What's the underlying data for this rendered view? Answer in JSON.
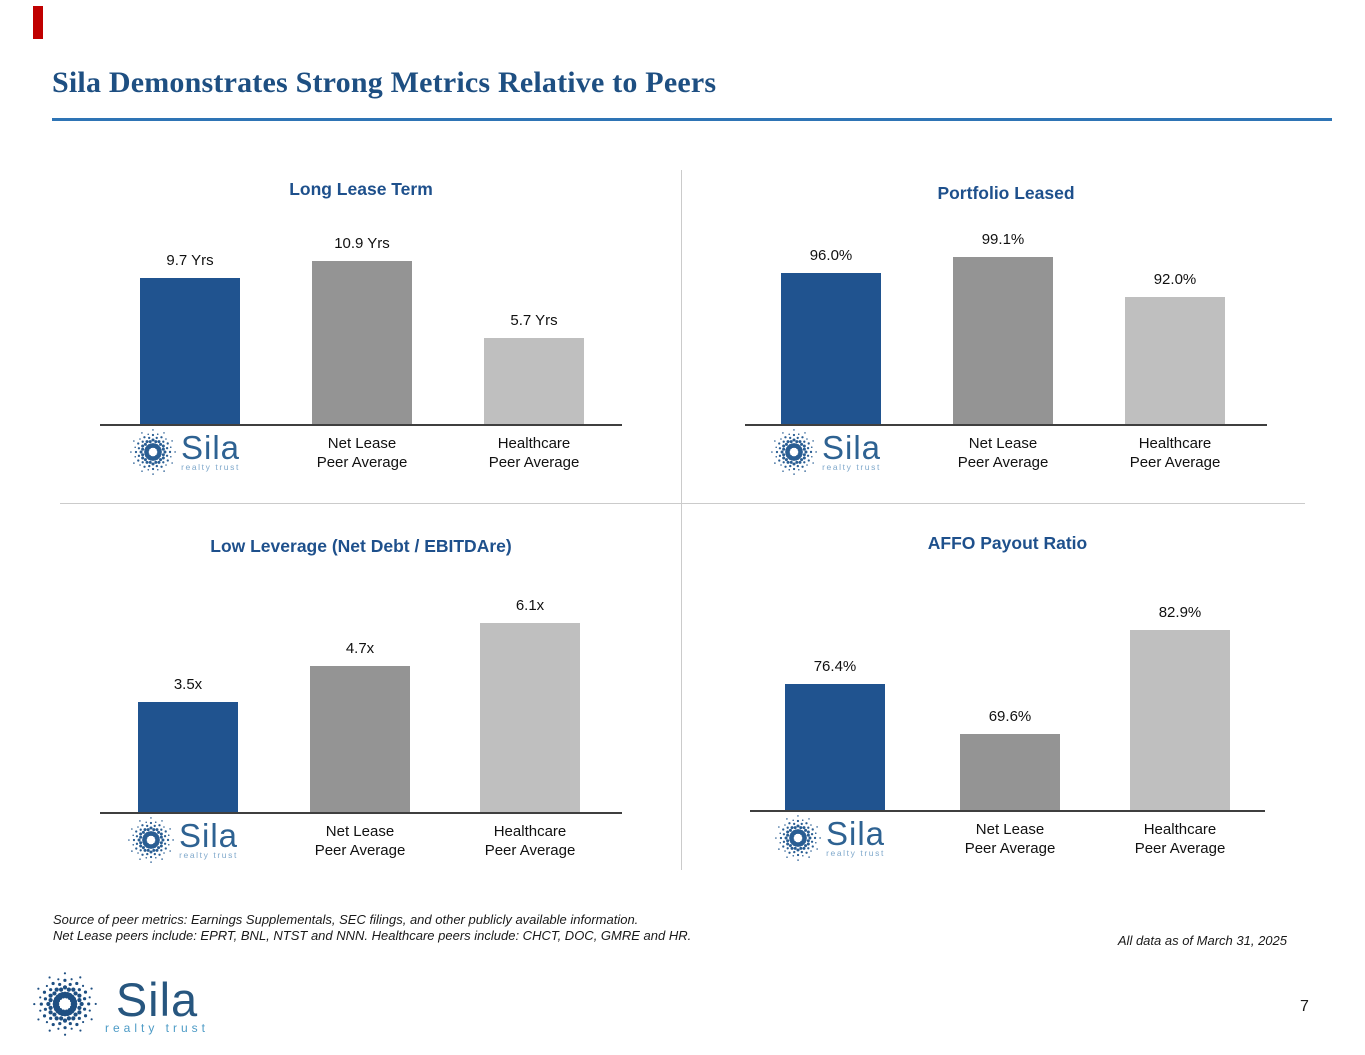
{
  "slide": {
    "title": "Sila Demonstrates Strong Metrics Relative to Peers",
    "page_number": "7"
  },
  "footer": {
    "source_line1": "Source of peer metrics: Earnings Supplementals, SEC filings, and other publicly available information.",
    "source_line2": "Net Lease peers include: EPRT, BNL, NTST and NNN. Healthcare peers include: CHCT, DOC, GMRE and HR.",
    "as_of": "All data as of March 31, 2025"
  },
  "logo": {
    "name": "Sila",
    "tagline": "realty trust"
  },
  "colors": {
    "sila_blue": "#20538F",
    "net_lease_gray": "#949494",
    "healthcare_gray": "#BFBFBF",
    "chart_title_blue": "#1E508C",
    "rule_blue": "#2E74B5",
    "accent_red": "#C00000",
    "axis_dark": "#3F3F3F"
  },
  "chart_data": [
    {
      "type": "bar",
      "title": "Long Lease Term",
      "categories": [
        "Sila",
        "Net Lease Peer Average",
        "Healthcare Peer Average"
      ],
      "values": [
        9.7,
        10.9,
        5.7
      ],
      "value_labels": [
        "9.7 Yrs",
        "10.9 Yrs",
        "5.7 Yrs"
      ],
      "unit": "Yrs",
      "bar_colors": [
        "#20538F",
        "#949494",
        "#BFBFBF"
      ],
      "x_label_lines": [
        [
          "Net Lease",
          "Peer Average"
        ],
        [
          "Healthcare",
          "Peer Average"
        ]
      ],
      "legend": "none",
      "grid": "off"
    },
    {
      "type": "bar",
      "title": "Portfolio Leased",
      "categories": [
        "Sila",
        "Net Lease Peer Average",
        "Healthcare Peer Average"
      ],
      "values": [
        96.0,
        99.1,
        92.0
      ],
      "value_labels": [
        "96.0%",
        "99.1%",
        "92.0%"
      ],
      "unit": "%",
      "bar_colors": [
        "#20538F",
        "#949494",
        "#BFBFBF"
      ],
      "x_label_lines": [
        [
          "Net Lease",
          "Peer Average"
        ],
        [
          "Healthcare",
          "Peer Average"
        ]
      ],
      "legend": "none",
      "grid": "off"
    },
    {
      "type": "bar",
      "title": "Low Leverage (Net Debt / EBITDAre)",
      "categories": [
        "Sila",
        "Net Lease Peer Average",
        "Healthcare Peer Average"
      ],
      "values": [
        3.5,
        4.7,
        6.1
      ],
      "value_labels": [
        "3.5x",
        "4.7x",
        "6.1x"
      ],
      "unit": "x",
      "bar_colors": [
        "#20538F",
        "#949494",
        "#BFBFBF"
      ],
      "x_label_lines": [
        [
          "Net Lease",
          "Peer Average"
        ],
        [
          "Healthcare",
          "Peer Average"
        ]
      ],
      "legend": "none",
      "grid": "off"
    },
    {
      "type": "bar",
      "title": "AFFO Payout Ratio",
      "categories": [
        "Sila",
        "Net Lease Peer Average",
        "Healthcare Peer Average"
      ],
      "values": [
        76.4,
        69.6,
        82.9
      ],
      "value_labels": [
        "76.4%",
        "69.6%",
        "82.9%"
      ],
      "unit": "%",
      "bar_colors": [
        "#20538F",
        "#949494",
        "#BFBFBF"
      ],
      "x_label_lines": [
        [
          "Net Lease",
          "Peer Average"
        ],
        [
          "Healthcare",
          "Peer Average"
        ]
      ],
      "legend": "none",
      "grid": "off"
    }
  ]
}
